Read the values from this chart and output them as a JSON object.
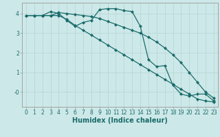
{
  "title": "",
  "xlabel": "Humidex (Indice chaleur)",
  "ylabel": "",
  "bg_color": "#cde8e8",
  "line_color": "#1a6b6b",
  "grid_color": "#b8d8d8",
  "xlim": [
    -0.5,
    23.5
  ],
  "ylim": [
    -0.75,
    4.55
  ],
  "xticks": [
    0,
    1,
    2,
    3,
    4,
    5,
    6,
    7,
    8,
    9,
    10,
    11,
    12,
    13,
    14,
    15,
    16,
    17,
    18,
    19,
    20,
    21,
    22,
    23
  ],
  "yticks": [
    0,
    1,
    2,
    3,
    4
  ],
  "ytick_labels": [
    "-0",
    "1",
    "2",
    "3",
    "4"
  ],
  "line1_x": [
    0,
    1,
    2,
    3,
    4,
    5,
    6,
    7,
    8,
    9,
    10,
    11,
    12,
    13,
    14,
    15,
    16,
    17,
    18,
    19,
    20,
    21,
    22,
    23
  ],
  "line1_y": [
    3.9,
    3.9,
    3.9,
    3.9,
    4.05,
    4.0,
    3.95,
    3.9,
    3.85,
    3.75,
    3.6,
    3.45,
    3.3,
    3.15,
    3.0,
    2.8,
    2.55,
    2.25,
    1.9,
    1.5,
    1.0,
    0.5,
    0.0,
    -0.3
  ],
  "line2_x": [
    0,
    1,
    2,
    3,
    4,
    5,
    6,
    7,
    8,
    9,
    10,
    11,
    12,
    13,
    14,
    15,
    16,
    17,
    18,
    19,
    20,
    21,
    22,
    23
  ],
  "line2_y": [
    3.9,
    3.9,
    3.9,
    4.1,
    4.0,
    3.65,
    3.35,
    3.55,
    3.65,
    4.2,
    4.25,
    4.25,
    4.15,
    4.1,
    3.35,
    1.65,
    1.3,
    1.35,
    0.35,
    -0.1,
    -0.2,
    -0.1,
    -0.1,
    -0.45
  ],
  "line3_x": [
    0,
    1,
    2,
    3,
    4,
    5,
    6,
    7,
    8,
    9,
    10,
    11,
    12,
    13,
    14,
    15,
    16,
    17,
    18,
    19,
    20,
    21,
    22,
    23
  ],
  "line3_y": [
    3.9,
    3.9,
    3.9,
    3.9,
    3.9,
    3.7,
    3.4,
    3.15,
    2.9,
    2.65,
    2.4,
    2.15,
    1.9,
    1.65,
    1.4,
    1.15,
    0.9,
    0.65,
    0.4,
    0.15,
    -0.1,
    -0.35,
    -0.45,
    -0.5
  ],
  "marker": "D",
  "markersize": 2,
  "linewidth": 0.9,
  "xlabel_fontsize": 7,
  "tick_fontsize": 5.5
}
